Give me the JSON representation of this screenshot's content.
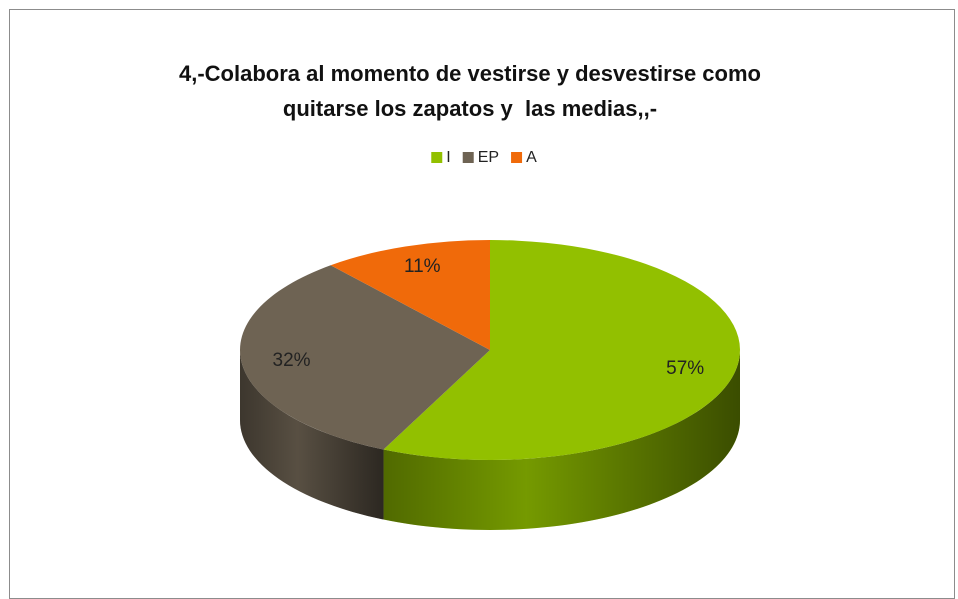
{
  "chart_data": {
    "type": "pie",
    "title": "4,-Colabora al momento de vestirse y desvestirse como quitarse los zapatos y  las medias,,-",
    "categories": [
      "I",
      "EP",
      "A"
    ],
    "values": [
      57,
      32,
      11
    ],
    "value_labels": [
      "57%",
      "32%",
      "11%"
    ],
    "colors": [
      "#92c000",
      "#6e6353",
      "#f06a0a"
    ],
    "legend": "top"
  }
}
